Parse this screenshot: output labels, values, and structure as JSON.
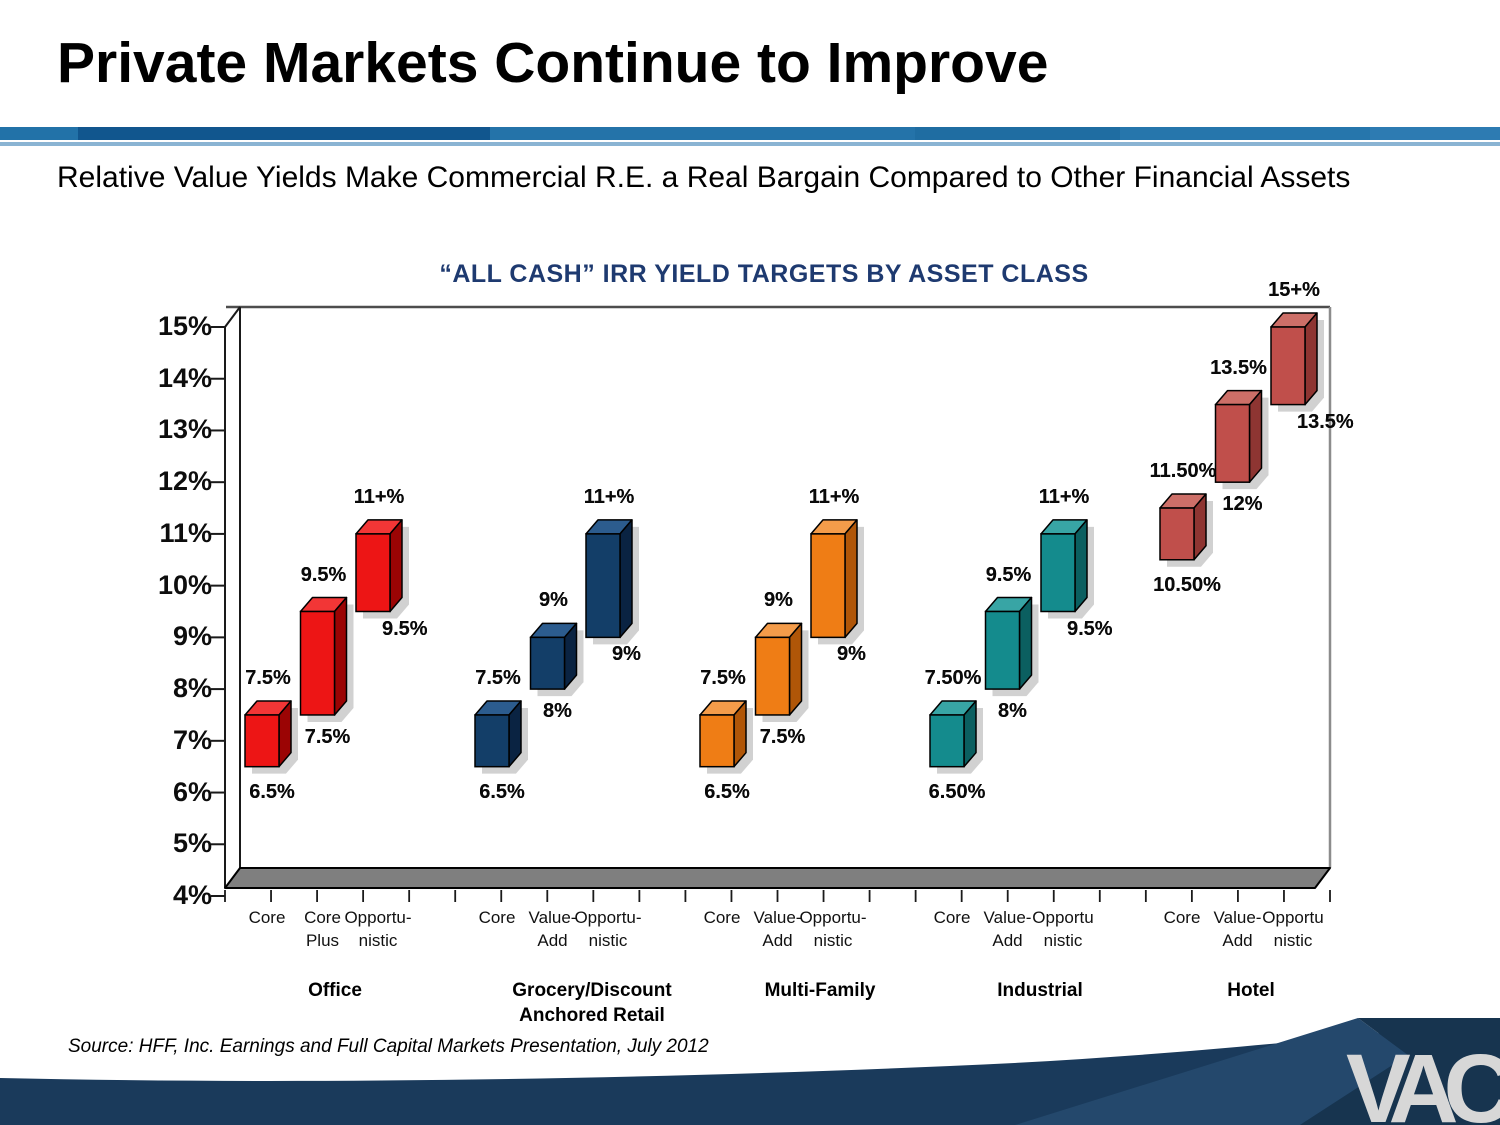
{
  "slide": {
    "title": "Private Markets Continue to Improve",
    "subtitle": "Relative Value Yields Make Commercial R.E. a Real Bargain Compared to Other Financial Assets",
    "source": "Source: HFF, Inc. Earnings and Full Capital Markets Presentation, July 2012",
    "logo_text": "VAC",
    "accent_colors": {
      "band_segments": [
        "#2272A8",
        "#11568E",
        "#2473A9",
        "#1F6DA2",
        "#2676AC",
        "#2D7BB2"
      ],
      "band_light_line": "#8AB4D3",
      "footer_navy": "#1A3A5B",
      "footer_navy_light": "#24486C",
      "footer_navy_dark": "#17344F",
      "logo_gray": "#D7D7D7"
    }
  },
  "chart_data": {
    "type": "bar",
    "subtype": "floating-range-3d-columns",
    "title": "“ALL CASH” IRR YIELD TARGETS BY ASSET CLASS",
    "title_color": "#1E3A70",
    "ylim": [
      4,
      15
    ],
    "grid": false,
    "legend": "none",
    "y_ticks": [
      "15%",
      "14%",
      "13%",
      "12%",
      "11%",
      "10%",
      "9%",
      "8%",
      "7%",
      "6%",
      "5%",
      "4%"
    ],
    "axis_note": "floating columns span low-to-high IRR target; 11+% and 15+% bars are open-ended",
    "groups": [
      {
        "name": "Office",
        "name_lines": [
          "Office"
        ],
        "colors": {
          "front": "#ED1515",
          "top": "#F23636",
          "side": "#9B0404"
        },
        "categories": [
          [
            "Core"
          ],
          [
            "Core",
            "Plus"
          ],
          [
            "Opportu-",
            "nistic"
          ]
        ],
        "bars": [
          {
            "category": "Core",
            "low": 6.5,
            "high": 7.5,
            "low_label": "6.5%",
            "high_label": "7.5%"
          },
          {
            "category": "Core Plus",
            "low": 7.5,
            "high": 9.5,
            "low_label": "7.5%",
            "high_label": "9.5%"
          },
          {
            "category": "Opportunistic",
            "low": 9.5,
            "high": 11,
            "low_label": "9.5%",
            "high_label": "11+%"
          }
        ]
      },
      {
        "name": "Grocery/Discount Anchored Retail",
        "name_lines": [
          "Grocery/Discount",
          "Anchored Retail"
        ],
        "colors": {
          "front": "#133E68",
          "top": "#2C5C8E",
          "side": "#0A2342"
        },
        "categories": [
          [
            "Core"
          ],
          [
            "Value-",
            "Add"
          ],
          [
            "Opportu-",
            "nistic"
          ]
        ],
        "bars": [
          {
            "category": "Core",
            "low": 6.5,
            "high": 7.5,
            "low_label": "6.5%",
            "high_label": "7.5%"
          },
          {
            "category": "Value-Add",
            "low": 8,
            "high": 9,
            "low_label": "8%",
            "high_label": "9%"
          },
          {
            "category": "Opportunistic",
            "low": 9,
            "high": 11,
            "low_label": "9%",
            "high_label": "11+%"
          }
        ]
      },
      {
        "name": "Multi-Family",
        "name_lines": [
          "Multi-Family"
        ],
        "colors": {
          "front": "#EF7D15",
          "top": "#F49C4A",
          "side": "#B05608"
        },
        "categories": [
          [
            "Core"
          ],
          [
            "Value-",
            "Add"
          ],
          [
            "Opportu-",
            "nistic"
          ]
        ],
        "bars": [
          {
            "category": "Core",
            "low": 6.5,
            "high": 7.5,
            "low_label": "6.5%",
            "high_label": "7.5%"
          },
          {
            "category": "Value-Add",
            "low": 7.5,
            "high": 9,
            "low_label": "7.5%",
            "high_label": "9%"
          },
          {
            "category": "Opportunistic",
            "low": 9,
            "high": 11,
            "low_label": "9%",
            "high_label": "11+%"
          }
        ]
      },
      {
        "name": "Industrial",
        "name_lines": [
          "Industrial"
        ],
        "colors": {
          "front": "#148B8D",
          "top": "#38A5A5",
          "side": "#0B5F60"
        },
        "categories": [
          [
            "Core"
          ],
          [
            "Value-",
            "Add"
          ],
          [
            "Opportu",
            "nistic"
          ]
        ],
        "bars": [
          {
            "category": "Core",
            "low": 6.5,
            "high": 7.5,
            "low_label": "6.50%",
            "high_label": "7.50%"
          },
          {
            "category": "Value-Add",
            "low": 8,
            "high": 9.5,
            "low_label": "8%",
            "high_label": "9.5%"
          },
          {
            "category": "Opportunistic",
            "low": 9.5,
            "high": 11,
            "low_label": "9.5%",
            "high_label": "11+%"
          }
        ]
      },
      {
        "name": "Hotel",
        "name_lines": [
          "Hotel"
        ],
        "colors": {
          "front": "#C04F4B",
          "top": "#CD6F68",
          "side": "#8E3532"
        },
        "categories": [
          [
            "Core"
          ],
          [
            "Value-",
            "Add"
          ],
          [
            "Opportu",
            "nistic"
          ]
        ],
        "bars": [
          {
            "category": "Core",
            "low": 10.5,
            "high": 11.5,
            "low_label": "10.50%",
            "high_label": "11.50%"
          },
          {
            "category": "Value-Add",
            "low": 12,
            "high": 13.5,
            "low_label": "12%",
            "high_label": "13.5%"
          },
          {
            "category": "Opportunistic",
            "low": 13.5,
            "high": 15,
            "low_label": "13.5%",
            "high_label": "15+%"
          }
        ]
      }
    ]
  }
}
